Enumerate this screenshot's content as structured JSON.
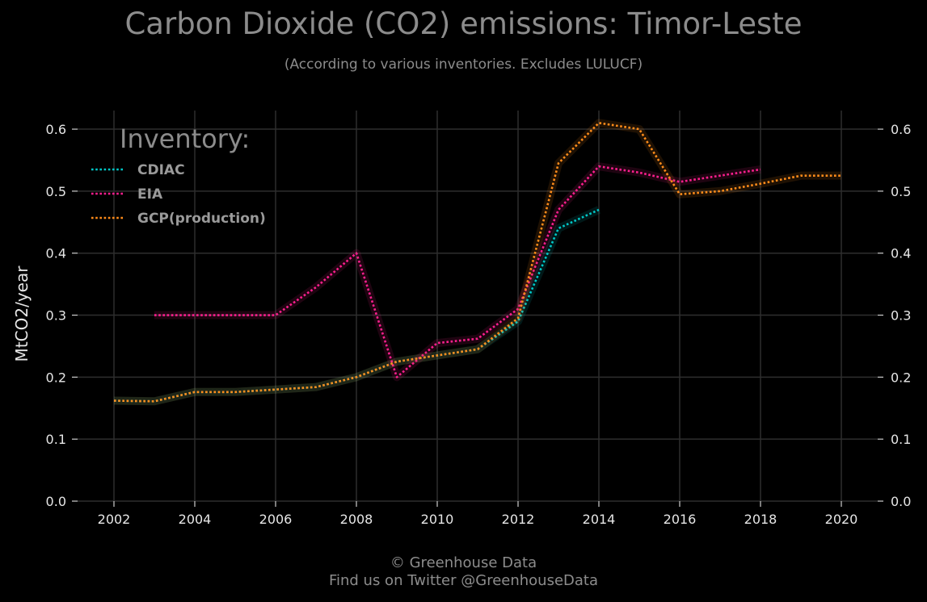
{
  "title": "Carbon Dioxide (CO2) emissions: Timor-Leste",
  "subtitle": "(According to various inventories. Excludes LULUCF)",
  "footer": {
    "line1": "© Greenhouse Data",
    "line2": "Find us on Twitter @GreenhouseData"
  },
  "chart_data": {
    "type": "line",
    "ylabel": "MtCO2/year",
    "xlim": [
      2001.1,
      2020.9
    ],
    "ylim": [
      0,
      0.63
    ],
    "x_ticks": [
      2002,
      2004,
      2006,
      2008,
      2010,
      2012,
      2014,
      2016,
      2018,
      2020
    ],
    "y_ticks": [
      0.0,
      0.1,
      0.2,
      0.3,
      0.4,
      0.5,
      0.6
    ],
    "grid": true,
    "legend": {
      "title": "Inventory:",
      "position": "top-left"
    },
    "series": [
      {
        "name": "CDIAC",
        "color": "#00c8c8",
        "x": [
          2002,
          2003,
          2004,
          2005,
          2006,
          2007,
          2008,
          2009,
          2010,
          2011,
          2012,
          2013,
          2014
        ],
        "y": [
          0.162,
          0.161,
          0.176,
          0.176,
          0.18,
          0.184,
          0.2,
          0.225,
          0.235,
          0.245,
          0.29,
          0.44,
          0.47
        ]
      },
      {
        "name": "EIA",
        "color": "#ff1f8f",
        "x": [
          2003,
          2004,
          2005,
          2006,
          2007,
          2008,
          2009,
          2010,
          2011,
          2012,
          2013,
          2014,
          2015,
          2016,
          2017,
          2018
        ],
        "y": [
          0.3,
          0.3,
          0.3,
          0.3,
          0.345,
          0.4,
          0.2,
          0.255,
          0.262,
          0.31,
          0.47,
          0.54,
          0.53,
          0.515,
          0.525,
          0.535
        ]
      },
      {
        "name": "GCP(production)",
        "color": "#ff8c1a",
        "x": [
          2002,
          2003,
          2004,
          2005,
          2006,
          2007,
          2008,
          2009,
          2010,
          2011,
          2012,
          2013,
          2014,
          2015,
          2016,
          2017,
          2018,
          2019,
          2020
        ],
        "y": [
          0.162,
          0.161,
          0.176,
          0.176,
          0.18,
          0.184,
          0.2,
          0.225,
          0.235,
          0.245,
          0.295,
          0.545,
          0.61,
          0.6,
          0.495,
          0.5,
          0.512,
          0.525,
          0.525
        ]
      }
    ]
  }
}
